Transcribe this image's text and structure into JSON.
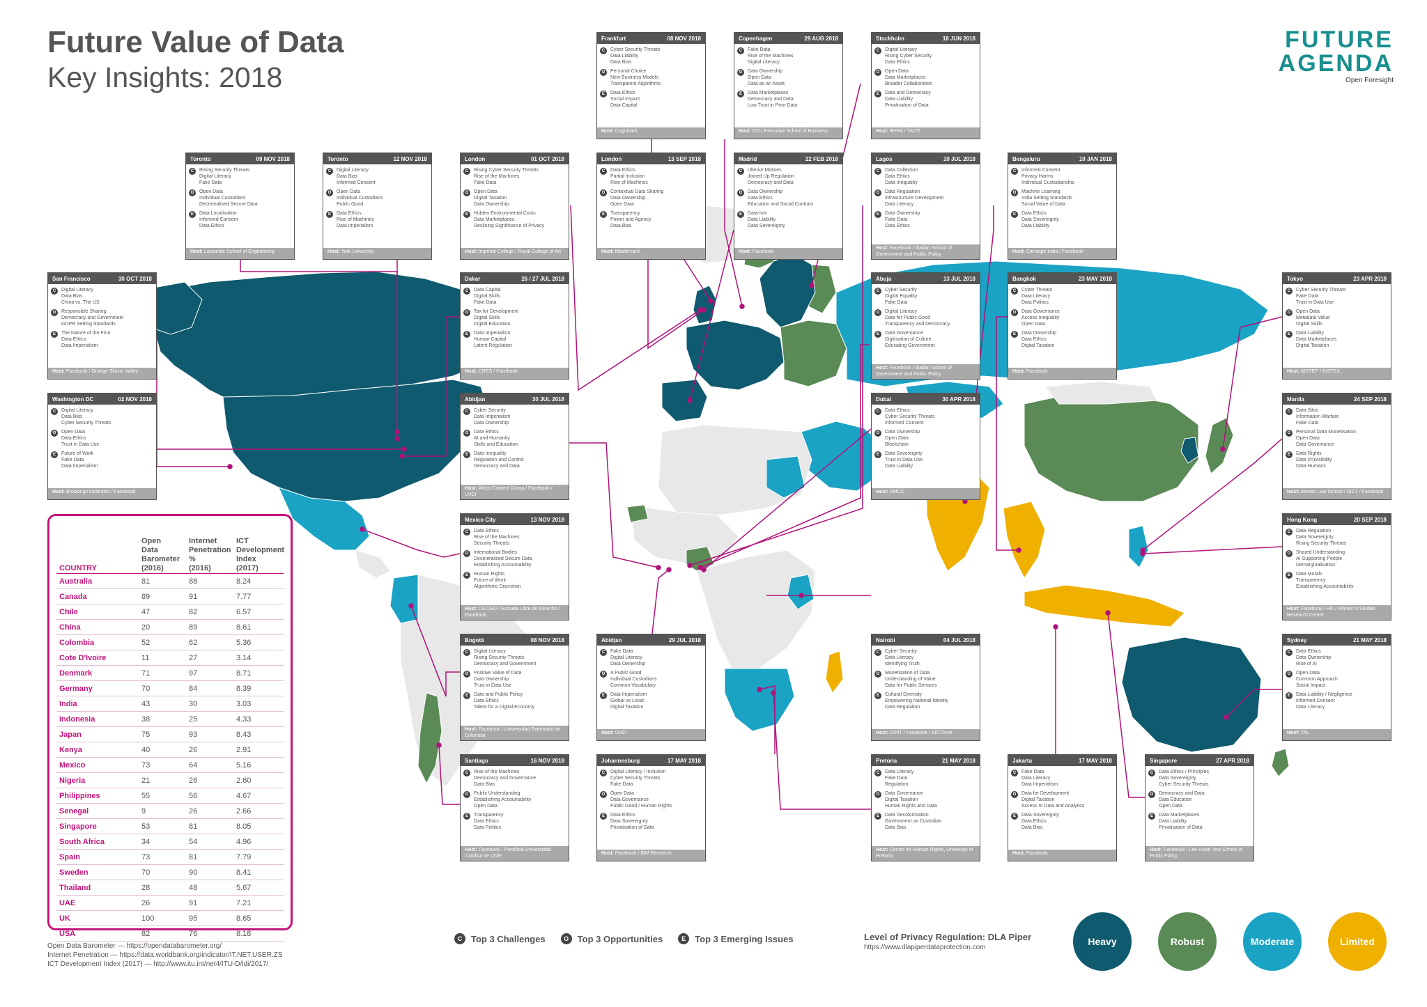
{
  "header": {
    "title": "Future Value of Data",
    "subtitle": "Key Insights: 2018"
  },
  "logo": {
    "line1": "FUTURE",
    "line2": "AGENDA",
    "tagline": "Open Foresight"
  },
  "labels": {
    "host": "Host:"
  },
  "colors": {
    "heavy": "#0f5a6e",
    "robust": "#5a8a55",
    "moderate": "#1aa3c4",
    "limited": "#f0b000",
    "unrated": "#e8e8e8",
    "ocean": "#ffffff",
    "connector": "#b0127a"
  },
  "cards": [
    {
      "city": "Frankfurt",
      "date": "08 NOV 2018",
      "c": [
        "Cyber Security Threats",
        "Data Liability",
        "Data Bias"
      ],
      "o": [
        "Personal Choice",
        "New Business Models",
        "Transparent Algorithms"
      ],
      "e": [
        "Data Ethics",
        "Social Impact",
        "Data Capital"
      ],
      "host": "Cognizant"
    },
    {
      "city": "Copenhagen",
      "date": "29 AUG 2018",
      "c": [
        "Fake Data",
        "Rise of the Machines",
        "Digital Literacy"
      ],
      "o": [
        "Data Ownership",
        "Open Data",
        "Data as an Asset"
      ],
      "e": [
        "Data Marketplaces",
        "Democracy and Data",
        "Low Trust in Poor Data"
      ],
      "host": "DTU Executive School of Business"
    },
    {
      "city": "Stockholm",
      "date": "18 JUN 2018",
      "c": [
        "Digital Literacy",
        "Rising Cyber Security",
        "Data Ethics"
      ],
      "o": [
        "Open Data",
        "Data Marketplaces",
        "Broader Collaboration"
      ],
      "e": [
        "Data and Democracy",
        "Data Liability",
        "Privatisation of Data"
      ],
      "host": "IEPIM / TACIT"
    },
    {
      "city": "Toronto",
      "date": "09 NOV 2018",
      "c": [
        "Rising Security Threats",
        "Digital Literacy",
        "Fake Data"
      ],
      "o": [
        "Open Data",
        "Individual Custodians",
        "Decentralised Secure Data"
      ],
      "e": [
        "Data Localisation",
        "Informed Consent",
        "Data Ethics"
      ],
      "host": "Lassonde School of Engineering"
    },
    {
      "city": "Toronto",
      "date": "12 NOV 2018",
      "c": [
        "Digital Literacy",
        "Data Bias",
        "Informed Consent"
      ],
      "o": [
        "Open Data",
        "Individual Custodians",
        "Public Good"
      ],
      "e": [
        "Data Ethics",
        "Rise of Machines",
        "Data Imperialism"
      ],
      "host": "York University"
    },
    {
      "city": "London",
      "date": "01 OCT 2018",
      "c": [
        "Rising Cyber Security Threats",
        "Rise of the Machines",
        "Fake Data"
      ],
      "o": [
        "Open Data",
        "Digital Taxation",
        "Data Ownership"
      ],
      "e": [
        "Hidden Environmental Costs",
        "Data Marketplaces",
        "Declining Significance of Privacy"
      ],
      "host": "Imperial College / Royal College of Art"
    },
    {
      "city": "London",
      "date": "13 SEP 2018",
      "c": [
        "Data Ethics",
        "Partial Inclusion",
        "Rise of Machines"
      ],
      "o": [
        "Contextual Data Sharing",
        "Data Ownership",
        "Open Data"
      ],
      "e": [
        "Transparency",
        "Power and Agency",
        "Data Bias"
      ],
      "host": "Mastercard"
    },
    {
      "city": "Madrid",
      "date": "22 FEB 2018",
      "c": [
        "Ulterior Motives",
        "Joined Up Regulation",
        "Democracy and Data"
      ],
      "o": [
        "Data Ownership",
        "Data Ethics",
        "Education and Social Contract"
      ],
      "e": [
        "Data-ism",
        "Data Liability",
        "Data Sovereignty"
      ],
      "host": "Facebook"
    },
    {
      "city": "Lagos",
      "date": "10 JUL 2018",
      "c": [
        "Data Collection",
        "Data Ethics",
        "Data Inequality"
      ],
      "o": [
        "Data Regulation",
        "Infrastructure Development",
        "Data Literacy"
      ],
      "e": [
        "Data Ownership",
        "Fake Data",
        "Data Ethics"
      ],
      "host": "Facebook / Ibadan School of Government and Public Policy"
    },
    {
      "city": "Bengaluru",
      "date": "10 JAN 2018",
      "c": [
        "Informed Consent",
        "Privacy Harms",
        "Individual Custodianship"
      ],
      "o": [
        "Machine Learning",
        "India Setting Standards",
        "Social Value of Data"
      ],
      "e": [
        "Data Ethics",
        "Data Sovereignty",
        "Data Liability"
      ],
      "host": "Carnegie India / Facebook"
    },
    {
      "city": "San Francisco",
      "date": "30 OCT 2018",
      "c": [
        "Digital Literacy",
        "Data Bias",
        "China vs. The US"
      ],
      "o": [
        "Responsible Sharing",
        "Democracy and Government",
        "GDPR Setting Standards"
      ],
      "e": [
        "The Nature of the Firm",
        "Data Ethics",
        "Data Imperialism"
      ],
      "host": "Facebook / Orange Silicon Valley"
    },
    {
      "city": "Dakar",
      "date": "26 / 27 JUL 2018",
      "c": [
        "Data Capital",
        "Digital Skills",
        "Fake Data"
      ],
      "o": [
        "Tax for Development",
        "Digital Skills",
        "Digital Education"
      ],
      "e": [
        "Data Imperialism",
        "Human Capital",
        "Latent Regulation"
      ],
      "host": "CRES / Facebook"
    },
    {
      "city": "Abuja",
      "date": "13 JUL 2018",
      "c": [
        "Cyber Security",
        "Digital Equality",
        "Fake Data"
      ],
      "o": [
        "Digital Literacy",
        "Data for Public Good",
        "Transparency and Democracy"
      ],
      "e": [
        "Data Governance",
        "Digitisation of Culture",
        "Educating Government"
      ],
      "host": "Facebook / Ibadan School of Government and Public Policy"
    },
    {
      "city": "Bangkok",
      "date": "23 MAY 2018",
      "c": [
        "Cyber Threats",
        "Data Literacy",
        "Data Politics"
      ],
      "o": [
        "Data Governance",
        "Access Inequality",
        "Open Data"
      ],
      "e": [
        "Data Ownership",
        "Data Ethics",
        "Digital Taxation"
      ],
      "host": "Facebook"
    },
    {
      "city": "Tokyo",
      "date": "23 APR 2018",
      "c": [
        "Cyber Security Threats",
        "Fake Data",
        "Trust in Data Use"
      ],
      "o": [
        "Open Data",
        "Metadata Value",
        "Digital Skills"
      ],
      "e": [
        "Data Liability",
        "Data Marketplaces",
        "Digital Taxation"
      ],
      "host": "NISTEP / RISTEX"
    },
    {
      "city": "Washington DC",
      "date": "02 NOV 2018",
      "c": [
        "Digital Literacy",
        "Data Bias",
        "Cyber Security Threats"
      ],
      "o": [
        "Open Data",
        "Data Ethics",
        "Trust in Data Use"
      ],
      "e": [
        "Future of Work",
        "Fake Data",
        "Data Imperialism"
      ],
      "host": "Brookings Institution / Facebook"
    },
    {
      "city": "Abidjan",
      "date": "30 JUL 2018",
      "c": [
        "Cyber Security",
        "Data Imperialism",
        "Data Ownership"
      ],
      "o": [
        "Data Ethics",
        "AI and Humanity",
        "Skills and Education"
      ],
      "e": [
        "Data Inequality",
        "Regulation and Control",
        "Democracy and Data"
      ],
      "host": "Africa Content Group / Facebook / UVCI"
    },
    {
      "city": "Dubai",
      "date": "30 APR 2018",
      "c": [
        "Data Ethics",
        "Cyber Security Threats",
        "Informed Consent"
      ],
      "o": [
        "Data Ownership",
        "Open Data",
        "Blockchain"
      ],
      "e": [
        "Data Sovereignty",
        "Trust in Data Use",
        "Data Liability"
      ],
      "host": "DMCC"
    },
    {
      "city": "Manila",
      "date": "24 SEP 2018",
      "c": [
        "Data Silos",
        "Information Warfare",
        "Fake Data"
      ],
      "o": [
        "Personal Data Monetisation",
        "Open Data",
        "Data Governance"
      ],
      "e": [
        "Data Rights",
        "Data (In)visibility",
        "Data Humans"
      ],
      "host": "Ateneo Law School / DICT / Facebook"
    },
    {
      "city": "Mexico City",
      "date": "13 NOV 2018",
      "c": [
        "Data Ethics",
        "Rise of the Machines",
        "Security Threats"
      ],
      "o": [
        "International Bodies",
        "Decentralised Secure Data",
        "Establishing Accountability"
      ],
      "e": [
        "Human Rights",
        "Future of Work",
        "Algorithmic Discretion"
      ],
      "host": "CECIED / Escuela Libre de Derecho / Facebook"
    },
    {
      "city": "Hong Kong",
      "date": "20 SEP 2018",
      "c": [
        "Data Regulation",
        "Data Sovereignty",
        "Rising Security Threats"
      ],
      "o": [
        "Shared Understanding",
        "AI Supporting People",
        "Demarginalisation"
      ],
      "e": [
        "Data Morals",
        "Transparency",
        "Establishing Accountability"
      ],
      "host": "Facebook / HKU Women's Studies Research Centre"
    },
    {
      "city": "Bogotá",
      "date": "08 NOV 2018",
      "c": [
        "Digital Literacy",
        "Rising Security Threats",
        "Democracy and Government"
      ],
      "o": [
        "Positive Value of Data",
        "Data Ownership",
        "Trust in Data Use"
      ],
      "e": [
        "Data and Public Policy",
        "Data Ethics",
        "Talent for a Digital Economy"
      ],
      "host": "Facebook / Universidad Externado de Colombia"
    },
    {
      "city": "Abidjan",
      "date": "29 JUL 2018",
      "c": [
        "Fake Data",
        "Digital Literacy",
        "Data Ownership"
      ],
      "o": [
        "A Public Good",
        "Individual Custodians",
        "Common Vocabulary"
      ],
      "e": [
        "Data Imperialism",
        "Global vs Local",
        "Digital Taxation"
      ],
      "host": "UVCI"
    },
    {
      "city": "Nairobi",
      "date": "04 JUL 2018",
      "c": [
        "Cyber Security",
        "Data Literacy",
        "Identifying Truth"
      ],
      "o": [
        "Monetisation of Data",
        "Understanding of Value",
        "Data for Public Services"
      ],
      "e": [
        "Cultural Diversity",
        "Empowering National Identity",
        "Data Regulation"
      ],
      "host": "CIPIT / Facebook / KICTAnet"
    },
    {
      "city": "Sydney",
      "date": "21 MAY 2018",
      "c": [
        "Data Ethics",
        "Data Ownership",
        "Rise of AI"
      ],
      "o": [
        "Open Data",
        "Common Approach",
        "Social Impact"
      ],
      "e": [
        "Data Liability / Negligence",
        "Informed Consent",
        "Data Literacy"
      ],
      "host": "TAL"
    },
    {
      "city": "Santiago",
      "date": "16 NOV 2018",
      "c": [
        "Rise of the Machines",
        "Democracy and Governance",
        "Data Bias"
      ],
      "o": [
        "Public Understanding",
        "Establishing Accountability",
        "Open Data"
      ],
      "e": [
        "Transparency",
        "Data Ethics",
        "Data Politics"
      ],
      "host": "Facebook / Pontificia Universidad Católica de Chile"
    },
    {
      "city": "Johannesburg",
      "date": "17 MAY 2018",
      "c": [
        "Digital Literacy / Inclusion",
        "Cyber Security Threats",
        "Fake Data"
      ],
      "o": [
        "Open Data",
        "Data Governance",
        "Public Good / Human Rights"
      ],
      "e": [
        "Data Ethics",
        "Data Sovereignty",
        "Privatisation of Data"
      ],
      "host": "Facebook / IBM Research"
    },
    {
      "city": "Pretoria",
      "date": "21 MAY 2018",
      "c": [
        "Data Literacy",
        "Fake Data",
        "Regulation"
      ],
      "o": [
        "Data Governance",
        "Digital Taxation",
        "Human Rights and Data"
      ],
      "e": [
        "Data Decolonisation",
        "Government as Custodian",
        "Data Bias"
      ],
      "host": "Centre for Human Rights, University of Pretoria"
    },
    {
      "city": "Jakarta",
      "date": "17 MAY 2018",
      "c": [
        "Fake Data",
        "Data Literacy",
        "Data Imperialism"
      ],
      "o": [
        "Data for Development",
        "Digital Taxation",
        "Access to Data and Analytics"
      ],
      "e": [
        "Data Sovereignty",
        "Data Ethics",
        "Data Bias"
      ],
      "host": "Facebook"
    },
    {
      "city": "Singapore",
      "date": "27 APR 2018",
      "c": [
        "Data Ethics / Principles",
        "Data Sovereignty",
        "Cyber Security Threats"
      ],
      "o": [
        "Democracy and Data",
        "Data Education",
        "Open Data"
      ],
      "e": [
        "Data Marketplaces",
        "Data Liability",
        "Privatisation of Data"
      ],
      "host": "Facebook / Lee Kwan Yew School of Public Policy"
    }
  ],
  "table": {
    "headers": {
      "country": "COUNTRY",
      "odb": [
        "Open",
        "Data",
        "Barometer",
        "(2016)"
      ],
      "internet": [
        "Internet",
        "Penetration",
        "%",
        "(2016)"
      ],
      "ict": [
        "ICT",
        "Development",
        "Index",
        "(2017)"
      ]
    },
    "rows": [
      {
        "country": "Australia",
        "odb": "81",
        "internet": "88",
        "ict": "8.24"
      },
      {
        "country": "Canada",
        "odb": "89",
        "internet": "91",
        "ict": "7.77"
      },
      {
        "country": "Chile",
        "odb": "47",
        "internet": "82",
        "ict": "6.57"
      },
      {
        "country": "China",
        "odb": "20",
        "internet": "89",
        "ict": "8.61"
      },
      {
        "country": "Colombia",
        "odb": "52",
        "internet": "62",
        "ict": "5.36"
      },
      {
        "country": "Cote D'Ivoire",
        "odb": "11",
        "internet": "27",
        "ict": "3.14"
      },
      {
        "country": "Denmark",
        "odb": "71",
        "internet": "97",
        "ict": "8.71"
      },
      {
        "country": "Germany",
        "odb": "70",
        "internet": "84",
        "ict": "8.39"
      },
      {
        "country": "India",
        "odb": "43",
        "internet": "30",
        "ict": "3.03"
      },
      {
        "country": "Indonesia",
        "odb": "38",
        "internet": "25",
        "ict": "4.33"
      },
      {
        "country": "Japan",
        "odb": "75",
        "internet": "93",
        "ict": "8.43"
      },
      {
        "country": "Kenya",
        "odb": "40",
        "internet": "26",
        "ict": "2.91"
      },
      {
        "country": "Mexico",
        "odb": "73",
        "internet": "64",
        "ict": "5.16"
      },
      {
        "country": "Nigeria",
        "odb": "21",
        "internet": "26",
        "ict": "2.60"
      },
      {
        "country": "Philippines",
        "odb": "55",
        "internet": "56",
        "ict": "4.67"
      },
      {
        "country": "Senegal",
        "odb": "9",
        "internet": "26",
        "ict": "2.66"
      },
      {
        "country": "Singapore",
        "odb": "53",
        "internet": "81",
        "ict": "8.05"
      },
      {
        "country": "South Africa",
        "odb": "34",
        "internet": "54",
        "ict": "4.96"
      },
      {
        "country": "Spain",
        "odb": "73",
        "internet": "81",
        "ict": "7.79"
      },
      {
        "country": "Sweden",
        "odb": "70",
        "internet": "90",
        "ict": "8.41"
      },
      {
        "country": "Thailand",
        "odb": "28",
        "internet": "48",
        "ict": "5.67"
      },
      {
        "country": "UAE",
        "odb": "26",
        "internet": "91",
        "ict": "7.21"
      },
      {
        "country": "UK",
        "odb": "100",
        "internet": "95",
        "ict": "8.65"
      },
      {
        "country": "USA",
        "odb": "82",
        "internet": "76",
        "ict": "8.18"
      }
    ]
  },
  "sources": [
    "Open Data Barometer — https://opendatabarometer.org/",
    "Internet Penetration — https://data.worldbank.org/indicator/IT.NET.USER.ZS",
    "ICT Development Index (2017) — http://www.itu.int/net4/ITU-D/idi/2017/"
  ],
  "legend": {
    "items": [
      {
        "mark": "C",
        "text": "Top 3 Challenges"
      },
      {
        "mark": "O",
        "text": "Top 3 Opportunities"
      },
      {
        "mark": "E",
        "text": "Top 3 Emerging Issues"
      }
    ],
    "privacy_title": "Level of Privacy Regulation: DLA Piper",
    "privacy_url": "https://www.dlapiperdataprotection.com",
    "levels": [
      {
        "label": "Heavy",
        "color": "#0f5a6e"
      },
      {
        "label": "Robust",
        "color": "#5a8a55"
      },
      {
        "label": "Moderate",
        "color": "#1aa3c4"
      },
      {
        "label": "Limited",
        "color": "#f0b000"
      }
    ]
  }
}
